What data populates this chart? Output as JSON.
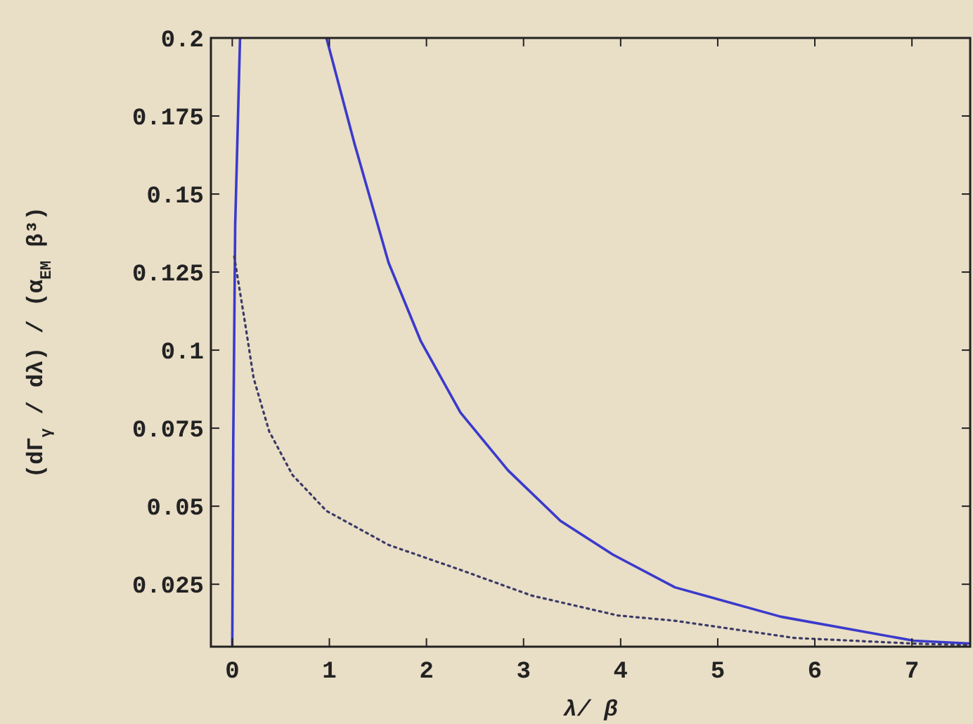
{
  "chart_data": {
    "type": "line",
    "xlabel": "λ/ β",
    "ylabel": "(dΓ$_{γ}$ / dλ) / (α$_{EM}$ β³)",
    "xlim": [
      -0.22,
      7.6
    ],
    "ylim": [
      0.005,
      0.2
    ],
    "xticks": [
      0,
      1,
      2,
      3,
      4,
      5,
      6,
      7
    ],
    "yticks": [
      0.025,
      0.05,
      0.075,
      0.1,
      0.125,
      0.15,
      0.175,
      0.2
    ],
    "series": [
      {
        "color": "#3a3acc",
        "line_style": "solid",
        "x": [
          0,
          0.01,
          0.03,
          0.08
        ],
        "values": [
          0.005,
          0.07,
          0.14,
          0.2
        ]
      },
      {
        "color": "#3a3acc",
        "line_style": "solid",
        "x": [
          0.97,
          1.26,
          1.61,
          1.94,
          2.35,
          2.84,
          3.38,
          3.92,
          4.56,
          5.65,
          7.02,
          7.6
        ],
        "values": [
          0.2,
          0.166,
          0.128,
          0.103,
          0.08,
          0.0615,
          0.0453,
          0.0345,
          0.024,
          0.0146,
          0.0069,
          0.006
        ]
      },
      {
        "color": "#3a3a66",
        "line_style": "dotted",
        "x": [
          0.02,
          0.13,
          0.22,
          0.38,
          0.62,
          0.97,
          1.61,
          2.35,
          3.08,
          3.97,
          4.56,
          5.79,
          7.02,
          7.6
        ],
        "values": [
          0.13,
          0.109,
          0.091,
          0.074,
          0.06,
          0.0485,
          0.0376,
          0.0296,
          0.0214,
          0.015,
          0.0133,
          0.0078,
          0.006,
          0.0055
        ]
      }
    ]
  }
}
